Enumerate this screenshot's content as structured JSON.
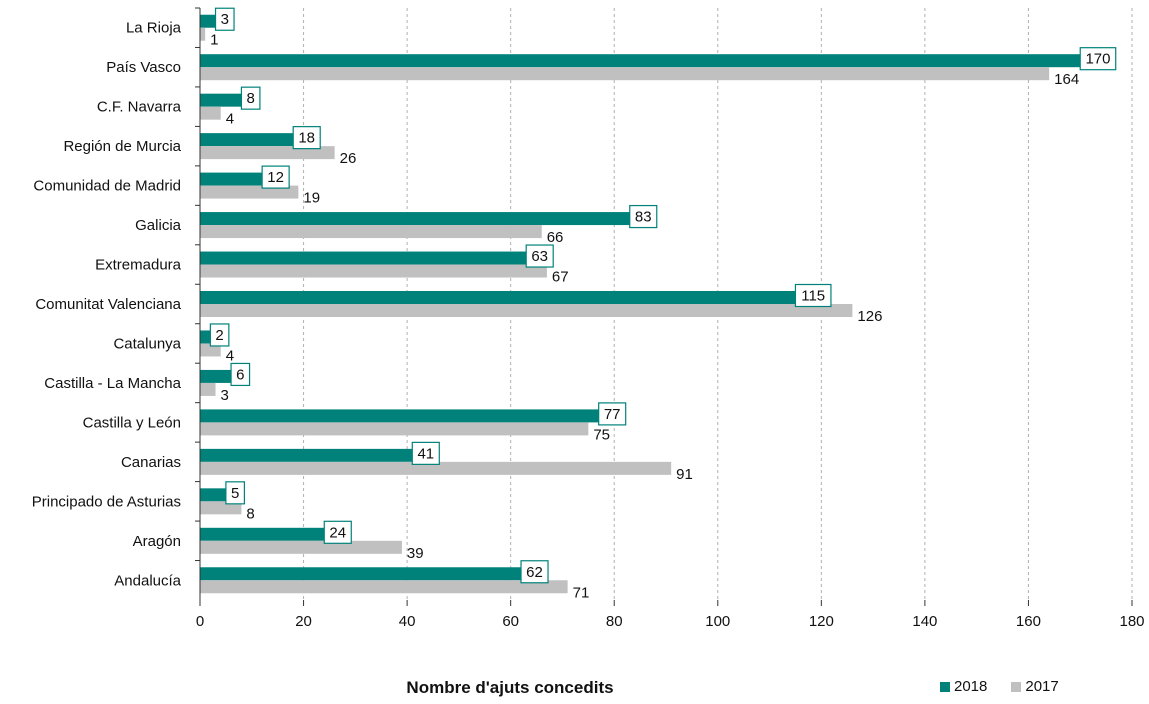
{
  "chart_data": {
    "type": "bar",
    "orientation": "horizontal",
    "categories": [
      "La Rioja",
      "País Vasco",
      "C.F. Navarra",
      "Región de Murcia",
      "Comunidad de Madrid",
      "Galicia",
      "Extremadura",
      "Comunitat Valenciana",
      "Catalunya",
      "Castilla - La Mancha",
      "Castilla y León",
      "Canarias",
      "Principado de Asturias",
      "Aragón",
      "Andalucía"
    ],
    "series": [
      {
        "name": "2018",
        "color": "#00827A",
        "values": [
          3,
          170,
          8,
          18,
          12,
          83,
          63,
          115,
          2,
          6,
          77,
          41,
          5,
          24,
          62
        ]
      },
      {
        "name": "2017",
        "color": "#C0C0C0",
        "values": [
          1,
          164,
          4,
          26,
          19,
          66,
          67,
          126,
          4,
          3,
          75,
          91,
          8,
          39,
          71
        ]
      }
    ],
    "xlabel": "Nombre d'ajuts concedits",
    "ylabel": "",
    "xlim": [
      0,
      180
    ],
    "xticks": [
      0,
      20,
      40,
      60,
      80,
      100,
      120,
      140,
      160,
      180
    ],
    "grid": "vertical-dashed",
    "legend_position": "bottom-right"
  }
}
